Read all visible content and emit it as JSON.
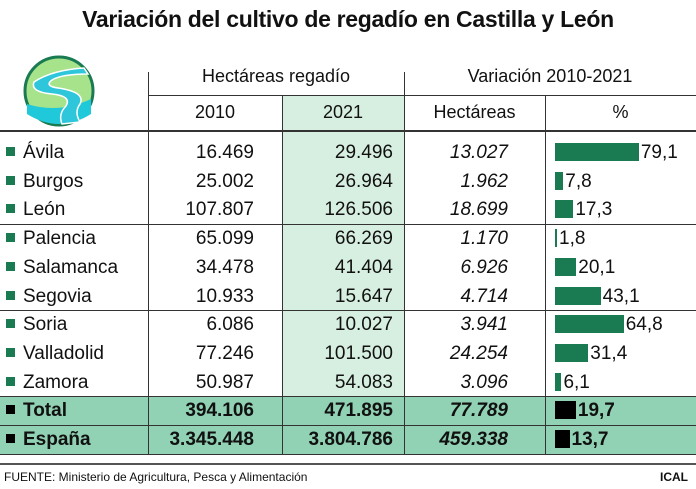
{
  "title": "Variación del cultivo de regadío en Castilla y León",
  "chart_data": {
    "type": "table",
    "group_headers": [
      "Hectáreas regadío",
      "Variación 2010-2021"
    ],
    "columns": [
      "2010",
      "2021",
      "Hectáreas",
      "%"
    ],
    "rows": [
      {
        "name": "Ávila",
        "y2010": "16.469",
        "y2021": "29.496",
        "var_ha": "13.027",
        "pct": "79,1",
        "pct_value": 79.1
      },
      {
        "name": "Burgos",
        "y2010": "25.002",
        "y2021": "26.964",
        "var_ha": "1.962",
        "pct": "7,8",
        "pct_value": 7.8
      },
      {
        "name": "León",
        "y2010": "107.807",
        "y2021": "126.506",
        "var_ha": "18.699",
        "pct": "17,3",
        "pct_value": 17.3
      },
      {
        "name": "Palencia",
        "y2010": "65.099",
        "y2021": "66.269",
        "var_ha": "1.170",
        "pct": "1,8",
        "pct_value": 1.8
      },
      {
        "name": "Salamanca",
        "y2010": "34.478",
        "y2021": "41.404",
        "var_ha": "6.926",
        "pct": "20,1",
        "pct_value": 20.1
      },
      {
        "name": "Segovia",
        "y2010": "10.933",
        "y2021": "15.647",
        "var_ha": "4.714",
        "pct": "43,1",
        "pct_value": 43.1
      },
      {
        "name": "Soria",
        "y2010": "6.086",
        "y2021": "10.027",
        "var_ha": "3.941",
        "pct": "64,8",
        "pct_value": 64.8
      },
      {
        "name": "Valladolid",
        "y2010": "77.246",
        "y2021": "101.500",
        "var_ha": "24.254",
        "pct": "31,4",
        "pct_value": 31.4
      },
      {
        "name": "Zamora",
        "y2010": "50.987",
        "y2021": "54.083",
        "var_ha": "3.096",
        "pct": "6,1",
        "pct_value": 6.1
      }
    ],
    "totals": [
      {
        "name": "Total",
        "y2010": "394.106",
        "y2021": "471.895",
        "var_ha": "77.789",
        "pct": "19,7",
        "pct_value": 19.7
      },
      {
        "name": "España",
        "y2010": "3.345.448",
        "y2021": "3.804.786",
        "var_ha": "459.338",
        "pct": "13,7",
        "pct_value": 13.7
      }
    ],
    "colors": {
      "bar": "#1a7a52",
      "total_bar": "#000000",
      "highlight_column": "#d7efe1",
      "total_row": "#91d1b4"
    }
  },
  "footer": {
    "source": "FUENTE: Ministerio de Agricultura, Pesca y Alimentación",
    "brand": "ICAL"
  },
  "logo": {
    "icon": "river-icon"
  }
}
